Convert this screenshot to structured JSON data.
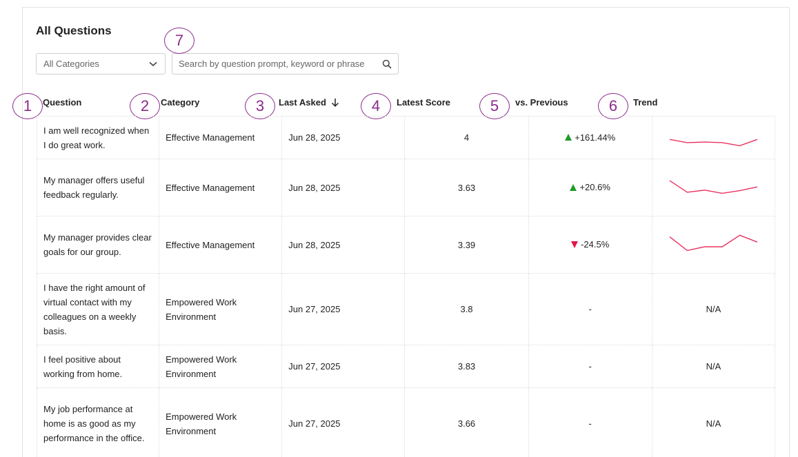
{
  "header": {
    "title": "All Questions",
    "category_select": "All Categories",
    "search_placeholder": "Search by question prompt, keyword or phrase"
  },
  "markers": [
    "1",
    "2",
    "3",
    "4",
    "5",
    "6",
    "7"
  ],
  "columns": {
    "question": "Question",
    "category": "Category",
    "last_asked": "Last Asked",
    "latest_score": "Latest Score",
    "vs_previous": "vs. Previous",
    "trend": "Trend"
  },
  "colors": {
    "accent_marker": "#8a2a8a",
    "up": "#1e9b2a",
    "down": "#e3174a",
    "trend_line": "#e8325e"
  },
  "rows": [
    {
      "question": "I am well recognized when I do great work.",
      "category": "Effective Management",
      "last_asked": "Jun 28, 2025",
      "score": "4",
      "delta": "+161.44%",
      "direction": "up",
      "trend": [
        3.4,
        3.1,
        3.15,
        3.1,
        2.8,
        3.4
      ],
      "trend_text": ""
    },
    {
      "question": "My manager offers useful feedback regularly.",
      "category": "Effective Management",
      "last_asked": "Jun 28, 2025",
      "score": "3.63",
      "delta": "+20.6%",
      "direction": "up",
      "trend": [
        4.2,
        3.1,
        3.3,
        3.0,
        3.25,
        3.6
      ],
      "trend_text": ""
    },
    {
      "question": "My manager provides clear goals for our group.",
      "category": "Effective Management",
      "last_asked": "Jun 28, 2025",
      "score": "3.39",
      "delta": "-24.5%",
      "direction": "down",
      "trend": [
        4.3,
        3.0,
        3.35,
        3.35,
        4.45,
        3.8
      ],
      "trend_text": ""
    },
    {
      "question": "I have the right amount of virtual contact with my colleagues on a weekly basis.",
      "category": "Empowered Work Environment",
      "last_asked": "Jun 27, 2025",
      "score": "3.8",
      "delta": "-",
      "direction": "none",
      "trend": [],
      "trend_text": "N/A"
    },
    {
      "question": "I feel positive about working from home.",
      "category": "Empowered Work Environment",
      "last_asked": "Jun 27, 2025",
      "score": "3.83",
      "delta": "-",
      "direction": "none",
      "trend": [],
      "trend_text": "N/A"
    },
    {
      "question": "My job performance at home is as good as my performance in the office.",
      "category": "Empowered Work Environment",
      "last_asked": "Jun 27, 2025",
      "score": "3.66",
      "delta": "-",
      "direction": "none",
      "trend": [],
      "trend_text": "N/A"
    }
  ]
}
